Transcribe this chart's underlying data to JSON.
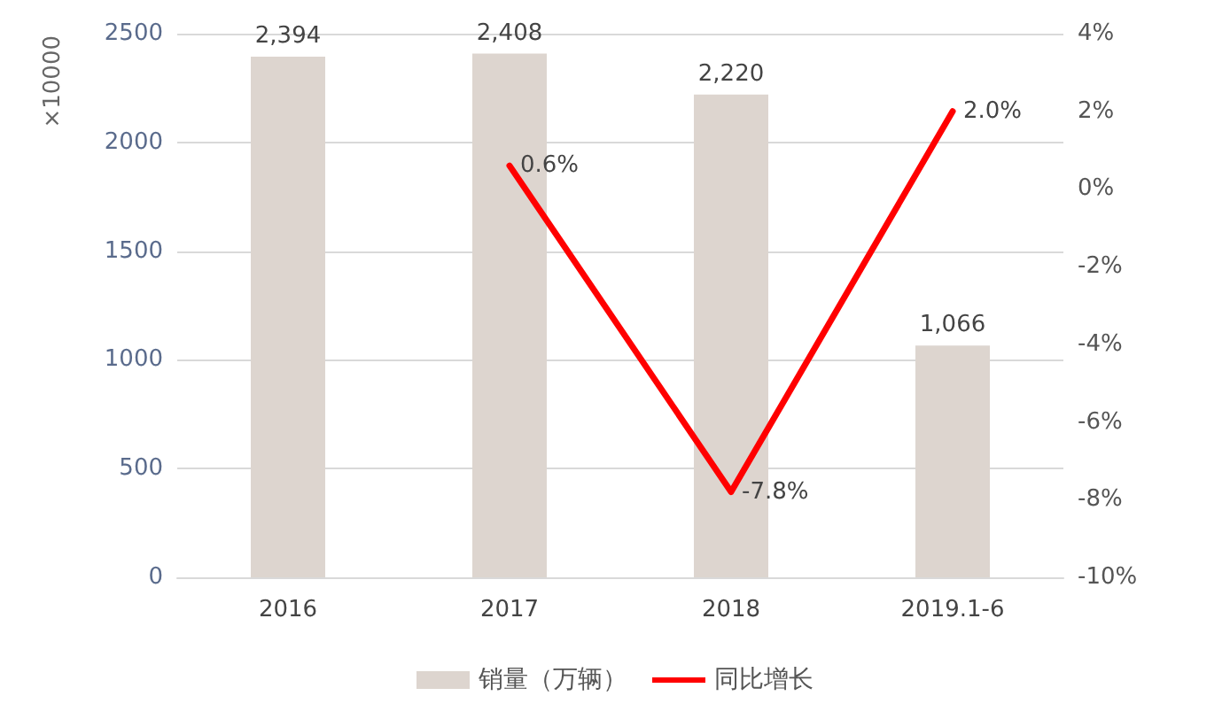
{
  "chart_data": {
    "type": "bar",
    "ylabel": "×10000",
    "categories": [
      "2016",
      "2017",
      "2018",
      "2019.1-6"
    ],
    "series": [
      {
        "name": "销量（万辆）",
        "color": "#ddd5cf",
        "values": [
          2394,
          2408,
          2220,
          1066
        ],
        "value_labels": [
          "2,394",
          "2,408",
          "2,220",
          "1,066"
        ]
      },
      {
        "name": "同比增长",
        "type": "line",
        "color": "#ff0000",
        "axis": "y2",
        "values": [
          null,
          0.6,
          -7.8,
          2.0
        ],
        "value_labels": [
          null,
          "0.6%",
          "-7.8%",
          "2.0%"
        ]
      }
    ],
    "ylim": [
      0,
      2500
    ],
    "yticks": [
      0,
      500,
      1000,
      1500,
      2000,
      2500
    ],
    "y2lim": [
      -10,
      4
    ],
    "y2ticks": [
      {
        "value": -10,
        "label": "-10%"
      },
      {
        "value": -8,
        "label": "-8%"
      },
      {
        "value": -6,
        "label": "-6%"
      },
      {
        "value": -4,
        "label": "-4%"
      },
      {
        "value": -2,
        "label": "-2%"
      },
      {
        "value": 0,
        "label": "0%"
      },
      {
        "value": 2,
        "label": "2%"
      },
      {
        "value": 4,
        "label": "4%"
      }
    ],
    "grid": "y",
    "legend": "bottom",
    "marker": "none",
    "line_style": "solid"
  }
}
